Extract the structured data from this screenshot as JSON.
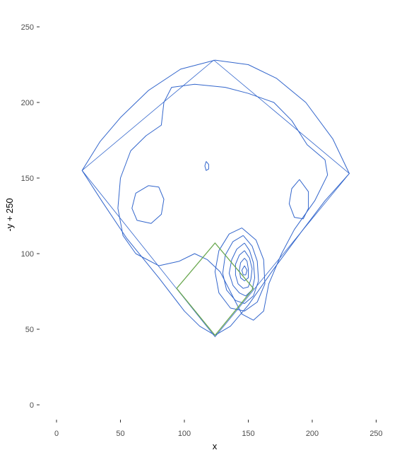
{
  "chart_data": {
    "type": "contour",
    "title": "",
    "xlabel": "x",
    "ylabel": "-y + 250",
    "xlim": [
      -10,
      260
    ],
    "ylim": [
      -10,
      260
    ],
    "xticks": [
      0,
      50,
      100,
      150,
      200,
      250
    ],
    "yticks": [
      0,
      50,
      100,
      150,
      200,
      250
    ],
    "colors": {
      "contour": "#3366cc",
      "infield": "#6aa84f",
      "field": "#3366cc"
    },
    "field_outline": [
      [
        20,
        155
      ],
      [
        123,
        228
      ],
      [
        229,
        153
      ],
      [
        124,
        45
      ],
      [
        20,
        155
      ]
    ],
    "infield_diamond": [
      [
        94,
        77
      ],
      [
        124,
        107
      ],
      [
        154,
        77
      ],
      [
        124,
        46
      ],
      [
        94,
        77
      ]
    ],
    "contours": [
      [
        [
          124,
          228
        ],
        [
          97,
          222
        ],
        [
          72,
          208
        ],
        [
          50,
          190
        ],
        [
          34,
          174
        ],
        [
          20,
          155
        ],
        [
          36,
          134
        ],
        [
          55,
          110
        ],
        [
          80,
          84
        ],
        [
          100,
          62
        ],
        [
          112,
          52
        ],
        [
          124,
          46
        ],
        [
          136,
          52
        ],
        [
          150,
          66
        ],
        [
          170,
          90
        ],
        [
          192,
          115
        ],
        [
          210,
          135
        ],
        [
          229,
          153
        ],
        [
          216,
          176
        ],
        [
          195,
          200
        ],
        [
          172,
          216
        ],
        [
          150,
          225
        ],
        [
          124,
          228
        ]
      ],
      [
        [
          108,
          212
        ],
        [
          90,
          210
        ],
        [
          84,
          200
        ],
        [
          82,
          185
        ],
        [
          70,
          178
        ],
        [
          58,
          168
        ],
        [
          50,
          150
        ],
        [
          48,
          130
        ],
        [
          52,
          112
        ],
        [
          62,
          100
        ],
        [
          80,
          92
        ],
        [
          96,
          95
        ],
        [
          108,
          100
        ],
        [
          118,
          96
        ],
        [
          128,
          88
        ],
        [
          145,
          60
        ],
        [
          154,
          56
        ],
        [
          162,
          62
        ],
        [
          166,
          80
        ],
        [
          176,
          100
        ],
        [
          186,
          116
        ],
        [
          202,
          135
        ],
        [
          212,
          152
        ],
        [
          210,
          162
        ],
        [
          196,
          172
        ],
        [
          184,
          188
        ],
        [
          170,
          200
        ],
        [
          150,
          206
        ],
        [
          132,
          210
        ],
        [
          108,
          212
        ]
      ],
      [
        [
          72,
          145
        ],
        [
          62,
          140
        ],
        [
          59,
          130
        ],
        [
          63,
          122
        ],
        [
          74,
          120
        ],
        [
          82,
          126
        ],
        [
          84,
          136
        ],
        [
          80,
          144
        ],
        [
          72,
          145
        ]
      ],
      [
        [
          190,
          149
        ],
        [
          184,
          143
        ],
        [
          182,
          133
        ],
        [
          186,
          124
        ],
        [
          193,
          123
        ],
        [
          197,
          130
        ],
        [
          197,
          141
        ],
        [
          190,
          149
        ]
      ],
      [
        [
          145,
          117
        ],
        [
          135,
          113
        ],
        [
          127,
          102
        ],
        [
          124,
          88
        ],
        [
          127,
          74
        ],
        [
          136,
          64
        ],
        [
          147,
          62
        ],
        [
          157,
          68
        ],
        [
          163,
          80
        ],
        [
          162,
          96
        ],
        [
          156,
          109
        ],
        [
          145,
          117
        ]
      ],
      [
        [
          146,
          112
        ],
        [
          138,
          108
        ],
        [
          132,
          99
        ],
        [
          130,
          87
        ],
        [
          133,
          76
        ],
        [
          140,
          69
        ],
        [
          147,
          67
        ],
        [
          154,
          72
        ],
        [
          158,
          82
        ],
        [
          157,
          95
        ],
        [
          153,
          105
        ],
        [
          146,
          112
        ]
      ],
      [
        [
          147,
          107
        ],
        [
          141,
          103
        ],
        [
          137,
          96
        ],
        [
          135,
          87
        ],
        [
          138,
          79
        ],
        [
          143,
          74
        ],
        [
          148,
          72
        ],
        [
          153,
          76
        ],
        [
          155,
          84
        ],
        [
          154,
          94
        ],
        [
          151,
          102
        ],
        [
          147,
          107
        ]
      ],
      [
        [
          147,
          102
        ],
        [
          143,
          99
        ],
        [
          140,
          93
        ],
        [
          140,
          86
        ],
        [
          142,
          80
        ],
        [
          146,
          77
        ],
        [
          150,
          78
        ],
        [
          152,
          83
        ],
        [
          153,
          90
        ],
        [
          151,
          97
        ],
        [
          147,
          102
        ]
      ],
      [
        [
          147,
          97
        ],
        [
          144,
          94
        ],
        [
          143,
          89
        ],
        [
          144,
          84
        ],
        [
          147,
          82
        ],
        [
          150,
          84
        ],
        [
          150,
          90
        ],
        [
          149,
          95
        ],
        [
          147,
          97
        ]
      ],
      [
        [
          147,
          92
        ],
        [
          145,
          89
        ],
        [
          146,
          86
        ],
        [
          148,
          86
        ],
        [
          149,
          89
        ],
        [
          147,
          92
        ]
      ],
      [
        [
          117,
          161
        ],
        [
          116,
          158
        ],
        [
          117,
          155
        ],
        [
          119,
          156
        ],
        [
          119,
          159
        ],
        [
          117,
          161
        ]
      ]
    ]
  }
}
